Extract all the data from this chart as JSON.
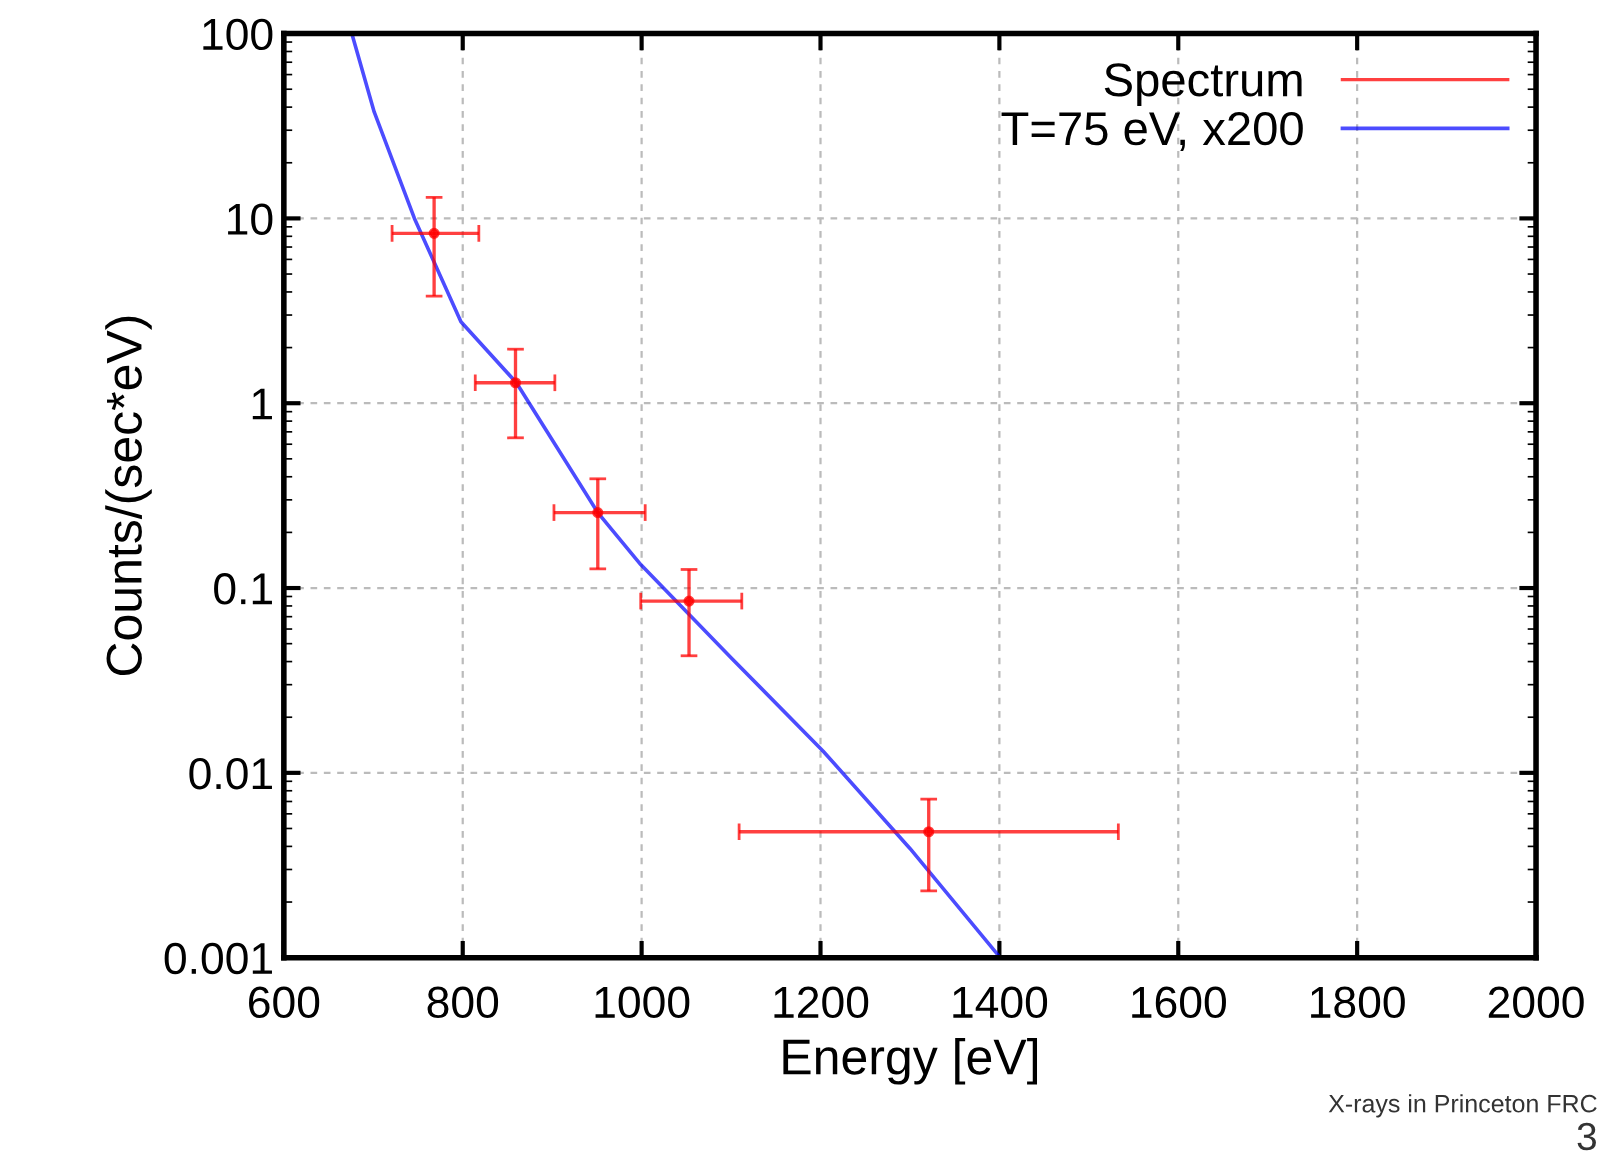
{
  "chart_data": {
    "type": "scatter",
    "xlabel": "Energy [eV]",
    "ylabel": "Counts/(sec*eV)",
    "xlim": [
      600,
      2000
    ],
    "xticks": [
      600,
      800,
      1000,
      1200,
      1400,
      1600,
      1800,
      2000
    ],
    "ylim": [
      0.001,
      100
    ],
    "yticks": [
      0.001,
      0.01,
      0.1,
      1,
      10,
      100
    ],
    "log": "y",
    "grid": true,
    "legend": "top right",
    "series": [
      {
        "name": "Spectrum",
        "color": "#ff0000",
        "marker": "circle",
        "x": [
          768,
          859,
          951,
          1053,
          1321
        ],
        "values": [
          8.3,
          1.29,
          0.256,
          0.085,
          0.0048
        ],
        "errors": [
          [
            3.8,
            13
          ],
          [
            0.65,
            1.96
          ],
          [
            0.127,
            0.39
          ],
          [
            0.043,
            0.126
          ],
          [
            0.0023,
            0.0072
          ]
        ],
        "xerrors": [
          [
            721,
            818
          ],
          [
            814,
            903
          ],
          [
            902,
            1004
          ],
          [
            999,
            1112
          ],
          [
            1109,
            1533
          ]
        ]
      },
      {
        "name": "T=75 eV, x200",
        "type": "line",
        "color": "#0000ff",
        "marker": "none",
        "line_style": "solid",
        "x": [
          676,
          701,
          746,
          798,
          860,
          951,
          999,
          1100,
          1203,
          1300,
          1401
        ],
        "values": [
          100,
          37.7,
          10,
          2.76,
          1.29,
          0.256,
          0.134,
          0.042,
          0.0131,
          0.0039,
          0.001
        ]
      }
    ],
    "annotations": [
      "X-rays in Princeton FRC",
      "3"
    ]
  }
}
